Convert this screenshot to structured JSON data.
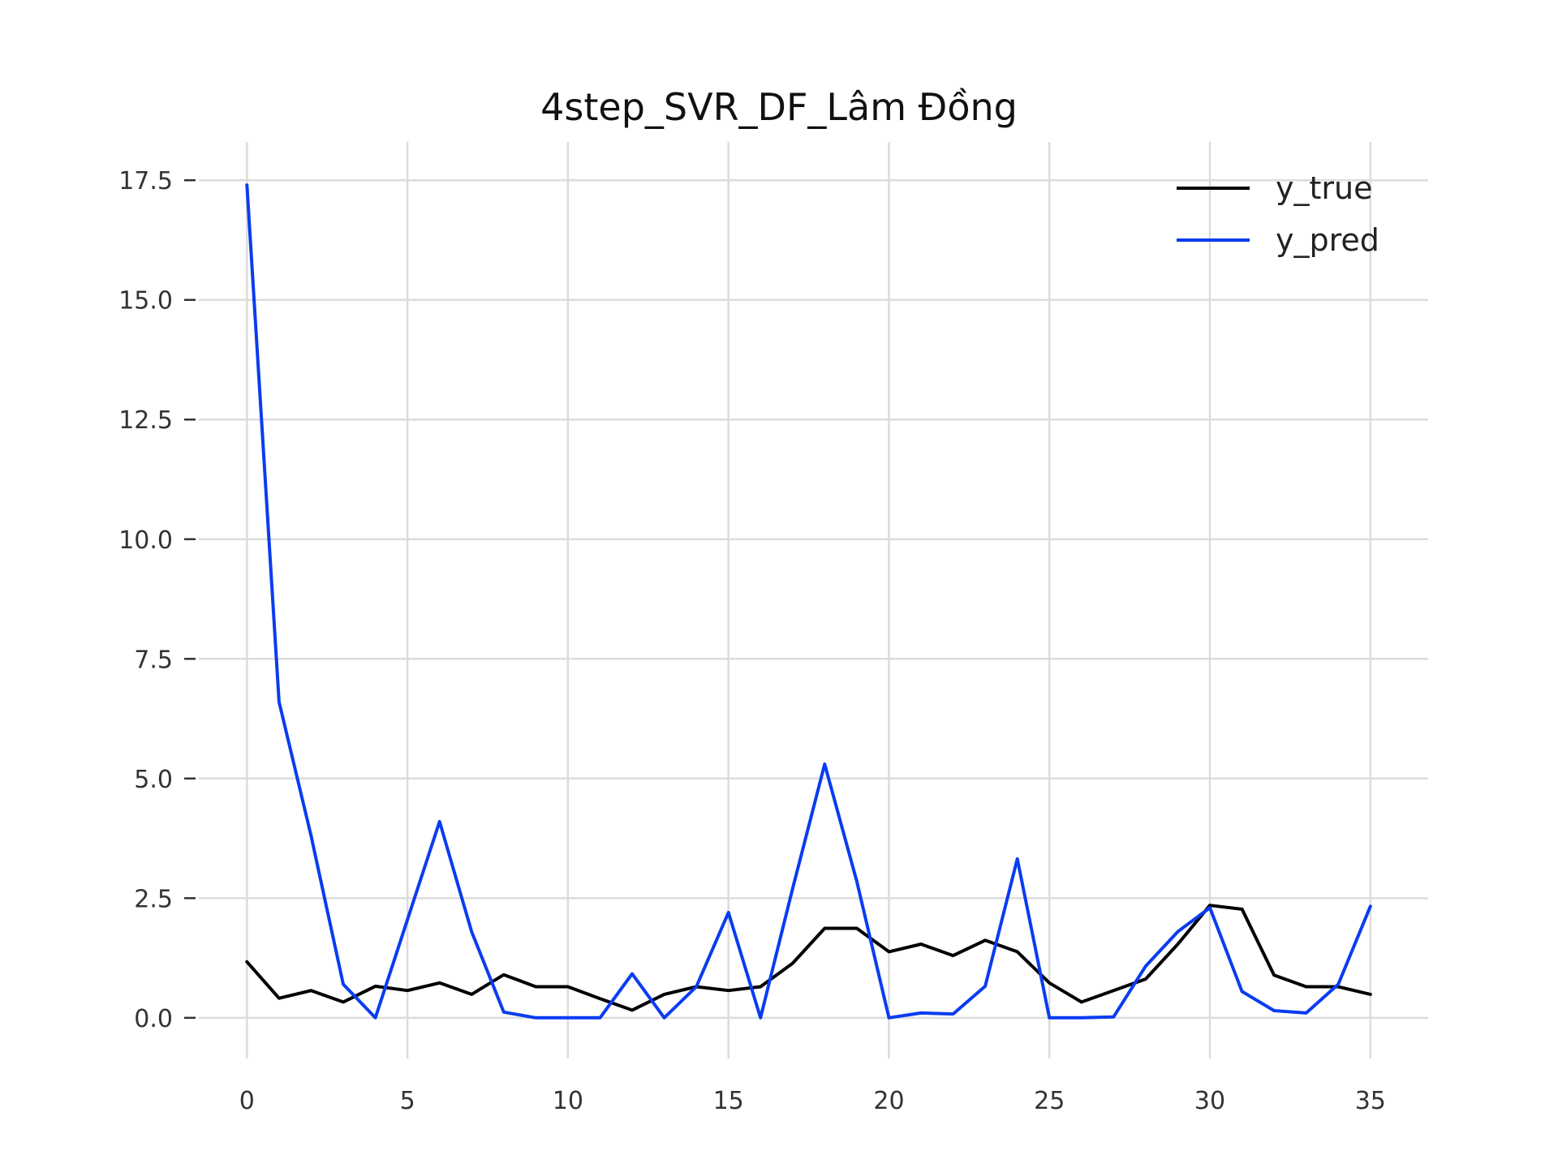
{
  "chart_data": {
    "type": "line",
    "title": "4step_SVR_DF_Lâm Đồng",
    "xlabel": "",
    "ylabel": "",
    "xlim": [
      -1.5,
      36.8
    ],
    "ylim": [
      -0.85,
      18.3
    ],
    "grid": true,
    "legend_position": "top-right",
    "x_ticks": [
      0,
      5,
      10,
      15,
      20,
      25,
      30,
      35
    ],
    "x_tick_labels": [
      "0",
      "5",
      "10",
      "15",
      "20",
      "25",
      "30",
      "35"
    ],
    "y_ticks": [
      0.0,
      2.5,
      5.0,
      7.5,
      10.0,
      12.5,
      15.0,
      17.5
    ],
    "y_tick_labels": [
      "0.0",
      "2.5",
      "5.0",
      "7.5",
      "10.0",
      "12.5",
      "15.0",
      "17.5"
    ],
    "x": [
      0,
      1,
      2,
      3,
      4,
      5,
      6,
      7,
      8,
      9,
      10,
      11,
      12,
      13,
      14,
      15,
      16,
      17,
      18,
      19,
      20,
      21,
      22,
      23,
      24,
      25,
      26,
      27,
      28,
      29,
      30,
      31,
      32,
      33,
      34,
      35
    ],
    "series": [
      {
        "name": "y_true",
        "color": "#000000",
        "values": [
          1.17,
          0.41,
          0.57,
          0.33,
          0.66,
          0.57,
          0.73,
          0.49,
          0.9,
          0.65,
          0.65,
          0.4,
          0.16,
          0.49,
          0.65,
          0.57,
          0.65,
          1.14,
          1.87,
          1.87,
          1.38,
          1.54,
          1.3,
          1.62,
          1.38,
          0.73,
          0.33,
          0.57,
          0.81,
          1.54,
          2.35,
          2.27,
          0.89,
          0.65,
          0.65,
          0.49
        ]
      },
      {
        "name": "y_pred",
        "color": "#0a3cf0",
        "values": [
          17.4,
          6.6,
          3.8,
          0.7,
          0.0,
          2.05,
          4.1,
          1.8,
          0.12,
          0.0,
          0.0,
          0.0,
          0.92,
          0.0,
          0.65,
          2.2,
          0.0,
          2.7,
          5.3,
          2.85,
          0.0,
          0.1,
          0.08,
          0.66,
          3.32,
          0.0,
          0.0,
          0.02,
          1.08,
          1.8,
          2.3,
          0.55,
          0.15,
          0.1,
          0.7,
          2.33
        ]
      }
    ]
  }
}
